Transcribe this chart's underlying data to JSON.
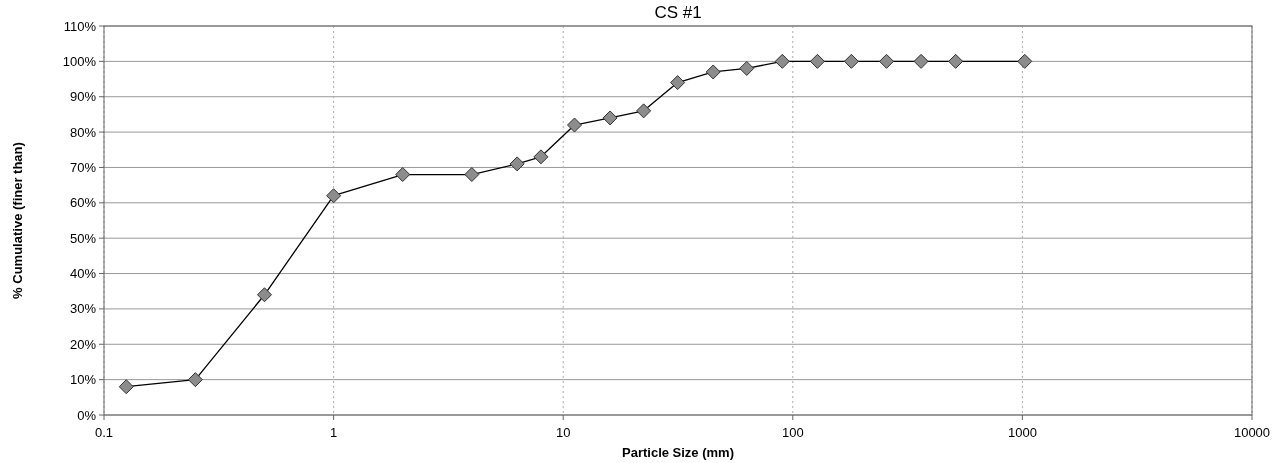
{
  "chart_data": {
    "type": "line",
    "title": "CS #1",
    "xlabel": "Particle Size (mm)",
    "ylabel": "% Cumulative (finer than)",
    "log": "x",
    "grid": true,
    "marker": "diamond",
    "line_style": "solid",
    "xlim": [
      0.1,
      10000
    ],
    "xticks": [
      0.1,
      1,
      10,
      100,
      1000,
      10000
    ],
    "ylim": [
      0,
      110
    ],
    "yticks": [
      {
        "value": 0,
        "label": "0%"
      },
      {
        "value": 10,
        "label": "10%"
      },
      {
        "value": 20,
        "label": "20%"
      },
      {
        "value": 30,
        "label": "30%"
      },
      {
        "value": 40,
        "label": "40%"
      },
      {
        "value": 50,
        "label": "50%"
      },
      {
        "value": 60,
        "label": "60%"
      },
      {
        "value": 70,
        "label": "70%"
      },
      {
        "value": 80,
        "label": "80%"
      },
      {
        "value": 90,
        "label": "90%"
      },
      {
        "value": 100,
        "label": "100%"
      },
      {
        "value": 110,
        "label": "110%"
      }
    ],
    "x": [
      0.125,
      0.25,
      0.5,
      1,
      2,
      4,
      6.3,
      8,
      11.2,
      16,
      22.4,
      31.5,
      45,
      63,
      90,
      128,
      180,
      256,
      362,
      512,
      1024
    ],
    "series": [
      {
        "color": "#8c8c8c",
        "values": [
          8,
          10,
          34,
          62,
          68,
          68,
          71,
          73,
          82,
          84,
          86,
          94,
          97,
          98,
          100,
          100,
          100,
          100,
          100,
          100,
          100
        ]
      }
    ]
  }
}
